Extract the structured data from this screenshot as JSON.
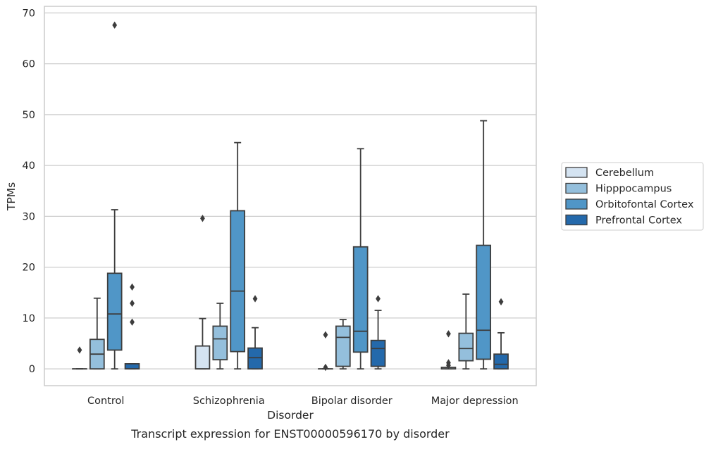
{
  "caption": "Transcript expression for ENST00000596170 by disorder",
  "colors": {
    "Cerebellum": "#d4e3f1",
    "Hipppocampus": "#94bfdc",
    "Orbitofontal Cortex": "#5096c7",
    "Prefrontal Cortex": "#2469ab",
    "box_edge": "#3d3d3d",
    "grid": "#cccccc",
    "frame": "#cccccc"
  },
  "chart_data": {
    "type": "box",
    "title": "",
    "xlabel": "Disorder",
    "ylabel": "TPMs",
    "ylim": [
      -3.3,
      71.3
    ],
    "yticks": [
      0,
      10,
      20,
      30,
      40,
      50,
      60,
      70
    ],
    "grid": true,
    "legend_position": "right",
    "categories": [
      "Control",
      "Schizophrenia",
      "Bipolar disorder",
      "Major depression"
    ],
    "series": [
      {
        "name": "Cerebellum",
        "boxes": [
          {
            "q1": 0,
            "median": 0,
            "q3": 0,
            "whisker_low": 0,
            "whisker_high": 0,
            "outliers": [
              3.7
            ]
          },
          {
            "q1": 0,
            "median": 0,
            "q3": 4.5,
            "whisker_low": 0,
            "whisker_high": 9.9,
            "outliers": [
              29.6
            ]
          },
          {
            "q1": 0,
            "median": 0,
            "q3": 0,
            "whisker_low": 0,
            "whisker_high": 0,
            "outliers": [
              6.7,
              0.3
            ]
          },
          {
            "q1": 0,
            "median": 0,
            "q3": 0.3,
            "whisker_low": 0,
            "whisker_high": 0.3,
            "outliers": [
              6.9,
              1.2,
              0.7
            ]
          }
        ]
      },
      {
        "name": "Hipppocampus",
        "boxes": [
          {
            "q1": 0,
            "median": 2.9,
            "q3": 5.8,
            "whisker_low": 0,
            "whisker_high": 13.9,
            "outliers": []
          },
          {
            "q1": 1.8,
            "median": 5.9,
            "q3": 8.4,
            "whisker_low": 0,
            "whisker_high": 12.9,
            "outliers": []
          },
          {
            "q1": 0.5,
            "median": 6.2,
            "q3": 8.4,
            "whisker_low": 0,
            "whisker_high": 9.7,
            "outliers": []
          },
          {
            "q1": 1.6,
            "median": 4.0,
            "q3": 7.0,
            "whisker_low": 0,
            "whisker_high": 14.7,
            "outliers": []
          }
        ]
      },
      {
        "name": "Orbitofontal Cortex",
        "boxes": [
          {
            "q1": 3.7,
            "median": 10.8,
            "q3": 18.8,
            "whisker_low": 0,
            "whisker_high": 31.3,
            "outliers": [
              67.6
            ]
          },
          {
            "q1": 3.4,
            "median": 15.3,
            "q3": 31.1,
            "whisker_low": 0,
            "whisker_high": 44.5,
            "outliers": []
          },
          {
            "q1": 3.3,
            "median": 7.4,
            "q3": 24.0,
            "whisker_low": 0,
            "whisker_high": 43.3,
            "outliers": []
          },
          {
            "q1": 1.9,
            "median": 7.6,
            "q3": 24.3,
            "whisker_low": 0,
            "whisker_high": 48.8,
            "outliers": []
          }
        ]
      },
      {
        "name": "Prefrontal Cortex",
        "boxes": [
          {
            "q1": 0,
            "median": 0,
            "q3": 1.0,
            "whisker_low": 0,
            "whisker_high": 1.0,
            "outliers": [
              16.1,
              12.9,
              9.2
            ]
          },
          {
            "q1": 0,
            "median": 2.2,
            "q3": 4.1,
            "whisker_low": 0,
            "whisker_high": 8.1,
            "outliers": [
              13.8
            ]
          },
          {
            "q1": 0.5,
            "median": 4.0,
            "q3": 5.6,
            "whisker_low": 0,
            "whisker_high": 11.5,
            "outliers": [
              13.8
            ]
          },
          {
            "q1": 0,
            "median": 0.9,
            "q3": 2.9,
            "whisker_low": 0,
            "whisker_high": 7.1,
            "outliers": [
              13.2
            ]
          }
        ]
      }
    ]
  }
}
